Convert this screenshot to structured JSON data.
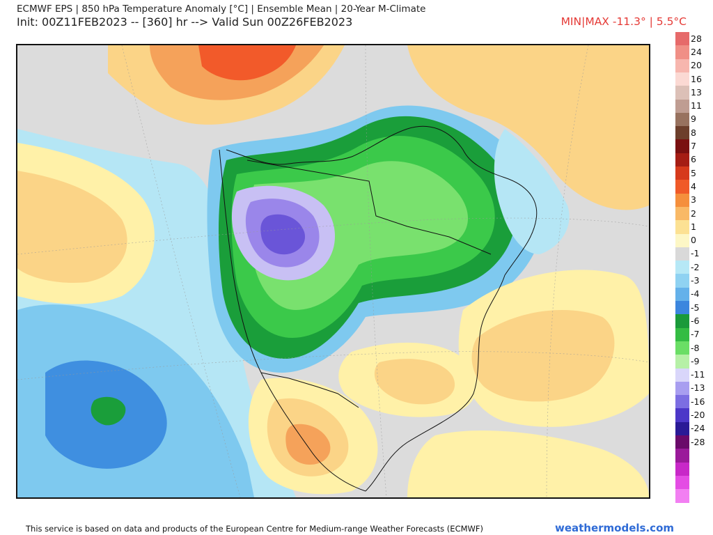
{
  "header": {
    "line1": "ECMWF EPS | 850 hPa Temperature Anomaly [°C] | Ensemble Mean | 20-Year M-Climate",
    "line2": "Init: 00Z11FEB2023 -- [360] hr --> Valid Sun 00Z26FEB2023",
    "minmax": "MIN|MAX -11.3° | 5.5°C"
  },
  "colors": {
    "ocean_neutral": "#dcdcdc",
    "warm_light": "#fff1a8",
    "warm_mid": "#fbd487",
    "warm_orange": "#f5a25a",
    "warm_red": "#f25a2a",
    "cool_light": "#b5e6f5",
    "cool_mid": "#7ec9ef",
    "cool_blue": "#3f8fe0",
    "green_dark": "#1a9e3a",
    "green_mid": "#3bc94a",
    "green_light": "#79e16e",
    "purple_light": "#c8c0f4",
    "purple_mid": "#9a86ea",
    "purple_dark": "#6a55d8"
  },
  "legend": [
    {
      "label": "28",
      "color": "#e66a6a"
    },
    {
      "label": "24",
      "color": "#f08f86"
    },
    {
      "label": "20",
      "color": "#f7b6ae"
    },
    {
      "label": "16",
      "color": "#fbd9d3"
    },
    {
      "label": "13",
      "color": "#dcc0b7"
    },
    {
      "label": "11",
      "color": "#bf9d92"
    },
    {
      "label": "9",
      "color": "#98725f"
    },
    {
      "label": "8",
      "color": "#6d3f2c"
    },
    {
      "label": "7",
      "color": "#7a1010"
    },
    {
      "label": "6",
      "color": "#a51d14"
    },
    {
      "label": "5",
      "color": "#d63a1c"
    },
    {
      "label": "4",
      "color": "#f05a28"
    },
    {
      "label": "3",
      "color": "#f58f3c"
    },
    {
      "label": "2",
      "color": "#f9b966"
    },
    {
      "label": "1",
      "color": "#fce193"
    },
    {
      "label": "0",
      "color": "#fdf7c6"
    },
    {
      "label": "-1",
      "color": "#d9d9d9"
    },
    {
      "label": "-2",
      "color": "#b6e8f6"
    },
    {
      "label": "-3",
      "color": "#8fd2f2"
    },
    {
      "label": "-4",
      "color": "#64b1ea"
    },
    {
      "label": "-5",
      "color": "#3c86de"
    },
    {
      "label": "-6",
      "color": "#1a9a3a"
    },
    {
      "label": "-7",
      "color": "#34bc43"
    },
    {
      "label": "-8",
      "color": "#6ade65"
    },
    {
      "label": "-9",
      "color": "#b6f0a7"
    },
    {
      "label": "-11",
      "color": "#d9d6fa"
    },
    {
      "label": "-13",
      "color": "#a89ef0"
    },
    {
      "label": "-16",
      "color": "#7c6ee2"
    },
    {
      "label": "-20",
      "color": "#4c37c8"
    },
    {
      "label": "-24",
      "color": "#2a1a96"
    },
    {
      "label": "-28",
      "color": "#6a0a6a"
    },
    {
      "label": "",
      "color": "#9a1a9a"
    },
    {
      "label": "",
      "color": "#c828c8"
    },
    {
      "label": "",
      "color": "#e44ce4"
    },
    {
      "label": "",
      "color": "#f27ff2"
    }
  ],
  "footer": {
    "attribution": "This service is based on data and products of the European Centre for Medium-range Weather Forecasts (ECMWF)",
    "brand": "weathermodels.com"
  }
}
